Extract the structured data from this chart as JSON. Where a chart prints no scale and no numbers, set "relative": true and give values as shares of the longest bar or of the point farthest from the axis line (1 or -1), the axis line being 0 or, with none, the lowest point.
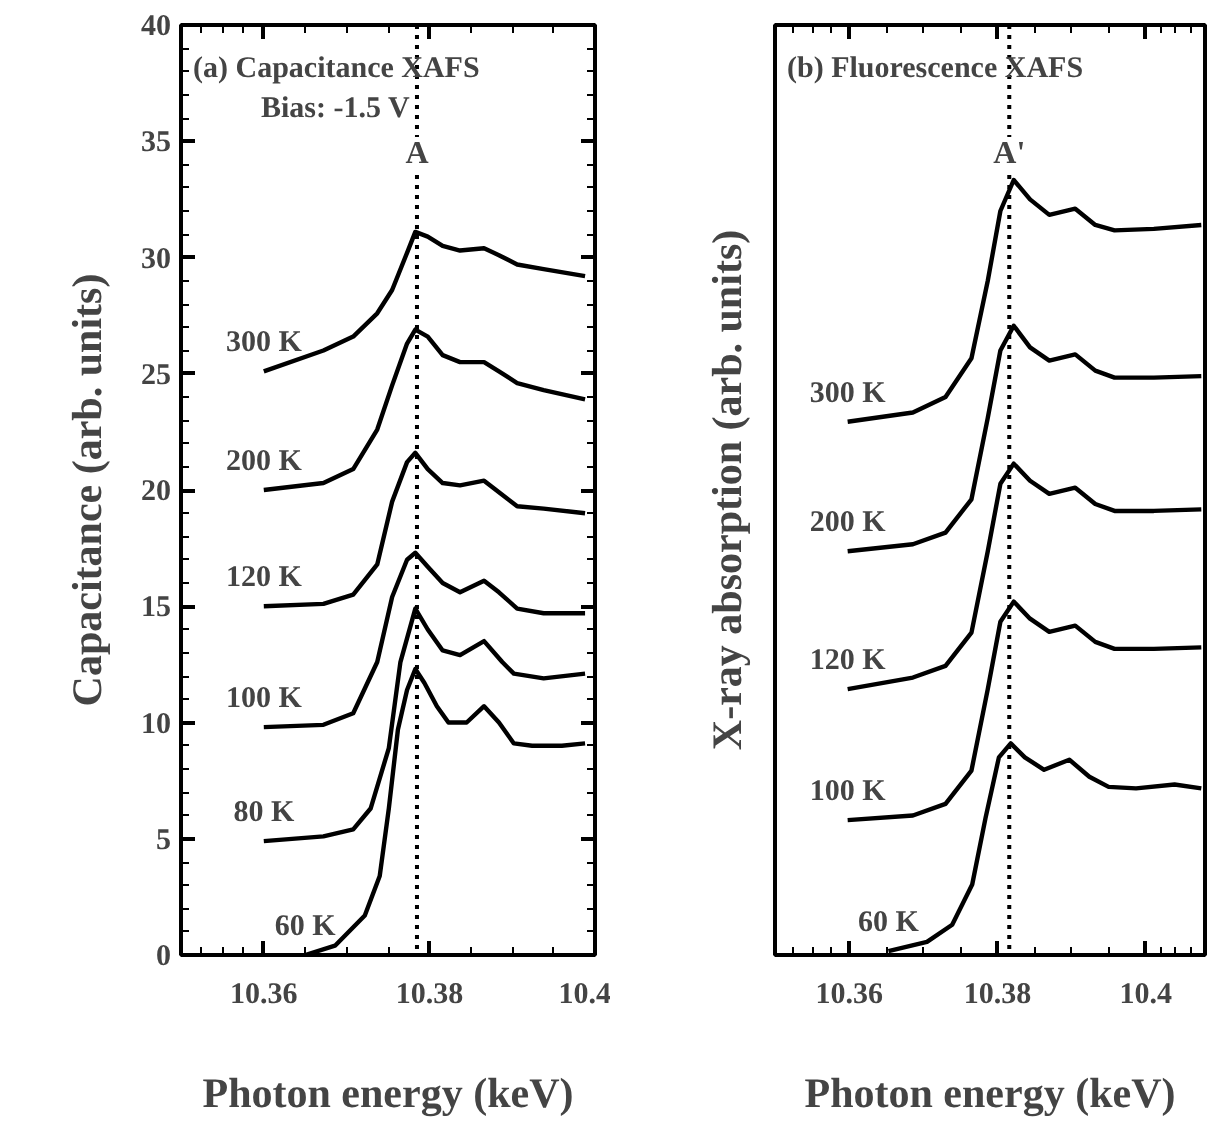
{
  "chart_data": [
    {
      "type": "line",
      "title": "(a) Capacitance XAFS",
      "subtitle": "Bias: -1.5 V",
      "xlabel": "Photon energy (keV)",
      "ylabel": "Capacitance (arb. units)",
      "xlim": [
        10.35,
        10.4
      ],
      "xticks": [
        10.36,
        10.38,
        10.4
      ],
      "ylim": [
        0,
        40
      ],
      "yticks": [
        0,
        5,
        10,
        15,
        20,
        25,
        30,
        35,
        40
      ],
      "line_style": "solid",
      "marker": "none",
      "legend": "left",
      "series": [
        {
          "name": "60 K",
          "color": "#000000",
          "x": [
            10.365,
            10.3686,
            10.3722,
            10.374,
            10.3751,
            10.3762,
            10.3773,
            10.3783,
            10.3794,
            10.3809,
            10.3823,
            10.3845,
            10.3866,
            10.3884,
            10.3902,
            10.3924,
            10.396,
            10.3988
          ],
          "values": [
            0,
            0.4,
            1.7,
            3.4,
            6.3,
            9.7,
            11.4,
            12.3,
            11.7,
            10.7,
            10.0,
            10.0,
            10.7,
            10.0,
            9.1,
            9.0,
            9.0,
            9.1
          ]
        },
        {
          "name": "80 K",
          "color": "#000000",
          "x": [
            10.36,
            10.3672,
            10.3708,
            10.3729,
            10.3751,
            10.3765,
            10.3783,
            10.3798,
            10.3816,
            10.3837,
            10.3866,
            10.3888,
            10.3902,
            10.3938,
            10.3988
          ],
          "values": [
            4.9,
            5.1,
            5.4,
            6.3,
            8.9,
            12.6,
            14.9,
            14.0,
            13.1,
            12.9,
            13.5,
            12.6,
            12.1,
            11.9,
            12.1
          ]
        },
        {
          "name": "100 K",
          "color": "#000000",
          "x": [
            10.36,
            10.3672,
            10.3708,
            10.3737,
            10.3755,
            10.3773,
            10.3783,
            10.3798,
            10.3816,
            10.3837,
            10.3866,
            10.3884,
            10.3906,
            10.3938,
            10.3988
          ],
          "values": [
            9.8,
            9.9,
            10.4,
            12.6,
            15.4,
            17.0,
            17.3,
            16.7,
            16.0,
            15.6,
            16.1,
            15.6,
            14.9,
            14.7,
            14.7
          ]
        },
        {
          "name": "120 K",
          "color": "#000000",
          "x": [
            10.36,
            10.3672,
            10.3708,
            10.3737,
            10.3755,
            10.3773,
            10.3783,
            10.3798,
            10.3816,
            10.3837,
            10.3866,
            10.3884,
            10.3906,
            10.3938,
            10.3988
          ],
          "values": [
            15.0,
            15.1,
            15.5,
            16.8,
            19.5,
            21.2,
            21.6,
            20.9,
            20.3,
            20.2,
            20.4,
            19.9,
            19.3,
            19.2,
            19.0
          ]
        },
        {
          "name": "200 K",
          "color": "#000000",
          "x": [
            10.36,
            10.3672,
            10.3708,
            10.3737,
            10.3755,
            10.3773,
            10.3783,
            10.3798,
            10.3816,
            10.3837,
            10.3866,
            10.3884,
            10.3906,
            10.3938,
            10.3988
          ],
          "values": [
            20.0,
            20.3,
            20.9,
            22.6,
            24.5,
            26.3,
            26.9,
            26.6,
            25.8,
            25.5,
            25.5,
            25.1,
            24.6,
            24.3,
            23.9
          ]
        },
        {
          "name": "300 K",
          "color": "#000000",
          "x": [
            10.36,
            10.3672,
            10.3708,
            10.3737,
            10.3755,
            10.3773,
            10.3783,
            10.3798,
            10.3816,
            10.3837,
            10.3866,
            10.3884,
            10.3906,
            10.3938,
            10.3988
          ],
          "values": [
            25.1,
            26.0,
            26.6,
            27.6,
            28.6,
            30.2,
            31.1,
            30.9,
            30.5,
            30.3,
            30.4,
            30.1,
            29.7,
            29.5,
            29.2
          ]
        }
      ],
      "ref_lines": [
        {
          "axis": "x",
          "value": 10.3785,
          "label": "A",
          "line_style": "dotted"
        }
      ]
    },
    {
      "type": "line",
      "title": "(b) Fluorescence XAFS",
      "xlabel": "Photon energy (keV)",
      "ylabel": "X-ray absorption (arb. units)",
      "xlim": [
        10.35,
        10.408
      ],
      "xticks": [
        10.36,
        10.38,
        10.4
      ],
      "relative": true,
      "line_style": "solid",
      "marker": "none",
      "legend": "left",
      "series": [
        {
          "name": "60 K",
          "color": "#000000",
          "x": [
            10.3653,
            10.3705,
            10.3739,
            10.3766,
            10.3784,
            10.3802,
            10.3818,
            10.3837,
            10.3863,
            10.3897,
            10.3924,
            10.395,
            10.3987,
            10.4039,
            10.4075
          ],
          "values": [
            0.005,
            0.017,
            0.039,
            0.091,
            0.177,
            0.255,
            0.273,
            0.255,
            0.239,
            0.252,
            0.23,
            0.217,
            0.215,
            0.22,
            0.215
          ]
        },
        {
          "name": "100 K",
          "color": "#000000",
          "x": [
            10.3598,
            10.3686,
            10.373,
            10.3765,
            10.3787,
            10.3804,
            10.3822,
            10.3844,
            10.387,
            10.3905,
            10.3932,
            10.3958,
            10.4011,
            10.4075
          ],
          "values": [
            0.174,
            0.18,
            0.195,
            0.238,
            0.343,
            0.43,
            0.456,
            0.434,
            0.417,
            0.425,
            0.404,
            0.395,
            0.395,
            0.397
          ]
        },
        {
          "name": "120 K",
          "color": "#000000",
          "x": [
            10.3598,
            10.3686,
            10.373,
            10.3765,
            10.3787,
            10.3804,
            10.3822,
            10.3844,
            10.387,
            10.3905,
            10.3932,
            10.3958,
            10.4011,
            10.4075
          ],
          "values": [
            0.343,
            0.358,
            0.373,
            0.416,
            0.521,
            0.608,
            0.634,
            0.612,
            0.595,
            0.603,
            0.582,
            0.573,
            0.573,
            0.575
          ]
        },
        {
          "name": "200 K",
          "color": "#000000",
          "x": [
            10.3598,
            10.3686,
            10.373,
            10.3765,
            10.3787,
            10.3804,
            10.3822,
            10.3844,
            10.387,
            10.3905,
            10.3932,
            10.3958,
            10.4011,
            10.4075
          ],
          "values": [
            0.521,
            0.53,
            0.545,
            0.588,
            0.693,
            0.78,
            0.812,
            0.784,
            0.767,
            0.775,
            0.754,
            0.745,
            0.745,
            0.747
          ]
        },
        {
          "name": "300 K",
          "color": "#000000",
          "x": [
            10.3598,
            10.3686,
            10.373,
            10.3765,
            10.3787,
            10.3804,
            10.3822,
            10.3844,
            10.387,
            10.3905,
            10.3932,
            10.3958,
            10.4011,
            10.4075
          ],
          "values": [
            0.688,
            0.7,
            0.72,
            0.77,
            0.87,
            0.96,
            1.0,
            0.975,
            0.955,
            0.963,
            0.942,
            0.935,
            0.937,
            0.942
          ]
        }
      ],
      "ref_lines": [
        {
          "axis": "x",
          "value": 10.3816,
          "label": "A'",
          "line_style": "dotted"
        }
      ]
    }
  ]
}
